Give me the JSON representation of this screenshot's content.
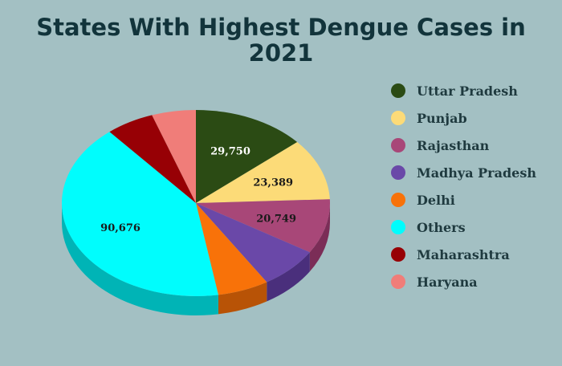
{
  "chart_data": {
    "type": "pie",
    "title": "States With Highest Dengue Cases in 2021",
    "legend_position": "right",
    "slices": [
      {
        "name": "Uttar Pradesh",
        "value": 29750,
        "label": "29,750",
        "color": "#2b4b14",
        "side_color": "#1c320c",
        "label_color": "#ffffff"
      },
      {
        "name": "Punjab",
        "value": 23389,
        "label": "23,389",
        "color": "#fcdb78",
        "side_color": "#c9aa55",
        "label_color": "#1a1a1a"
      },
      {
        "name": "Rajasthan",
        "value": 20749,
        "label": "20,749",
        "color": "#a84778",
        "side_color": "#7b2d57",
        "label_color": "#1a1a1a"
      },
      {
        "name": "Madhya Pradesh",
        "value": 15900,
        "label": "",
        "color": "#6a48a8",
        "side_color": "#4a2f7c",
        "label_color": "#1a1a1a"
      },
      {
        "name": "Delhi",
        "value": 13500,
        "label": "",
        "color": "#f87209",
        "side_color": "#b85306",
        "label_color": "#1a1a1a"
      },
      {
        "name": "Others",
        "value": 90676,
        "label": "90,676",
        "color": "#00fdfd",
        "side_color": "#00b4b6",
        "label_color": "#1a1a1a"
      },
      {
        "name": "Maharashtra",
        "value": 12700,
        "label": "",
        "color": "#970005",
        "side_color": "#620003",
        "label_color": "#ffffff"
      },
      {
        "name": "Haryana",
        "value": 11600,
        "label": "",
        "color": "#f07d79",
        "side_color": "#b85854",
        "label_color": "#1a1a1a"
      }
    ]
  }
}
